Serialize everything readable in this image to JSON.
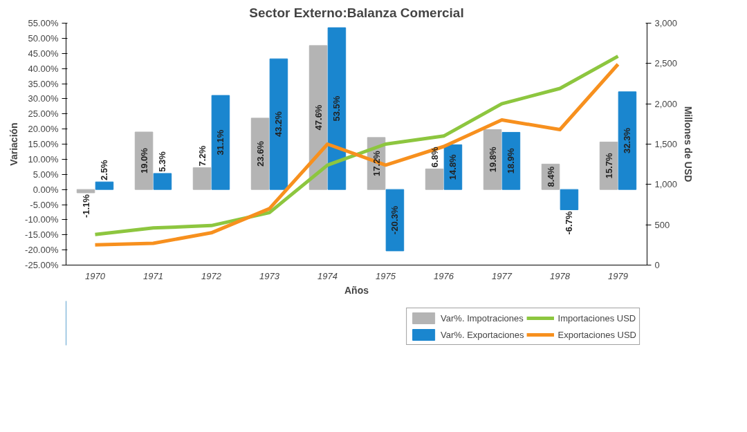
{
  "chart_data": {
    "type": "bar",
    "title": "Sector Externo:Balanza Comercial",
    "xlabel": "Años",
    "ylabel": "Variación",
    "y2label": "Millones de USD",
    "categories": [
      "1970",
      "1971",
      "1972",
      "1973",
      "1974",
      "1975",
      "1976",
      "1977",
      "1978",
      "1979"
    ],
    "series": [
      {
        "name": "Var%. Impotraciones",
        "color": "#b4b4b4",
        "values": [
          -1.1,
          19.0,
          7.2,
          23.6,
          47.6,
          17.2,
          6.8,
          19.8,
          8.4,
          15.7
        ],
        "value_labels": [
          "-1.1%",
          "19.0%",
          "7.2%",
          "23.6%",
          "47.6%",
          "17.2%",
          "6.8%",
          "19.8%",
          "8.4%",
          "15.7%"
        ]
      },
      {
        "name": "Var%. Exportaciones",
        "color": "#1a86cf",
        "values": [
          2.5,
          5.3,
          31.1,
          43.2,
          53.5,
          -20.3,
          14.8,
          18.9,
          -6.7,
          32.3
        ],
        "value_labels": [
          "2.5%",
          "5.3%",
          "31.1%",
          "43.2%",
          "53.5%",
          "-20.3%",
          "14.8%",
          "18.9%",
          "-6.7%",
          "32.3%"
        ]
      },
      {
        "name": "Importaciones USD",
        "type": "line",
        "axis": "y2",
        "color": "#8dc63f",
        "values": [
          380,
          460,
          490,
          650,
          1240,
          1500,
          1600,
          2000,
          2190,
          2590
        ]
      },
      {
        "name": "Exportaciones USD",
        "type": "line",
        "axis": "y2",
        "color": "#f7901e",
        "values": [
          250,
          270,
          400,
          700,
          1500,
          1240,
          1470,
          1800,
          1680,
          2490
        ]
      }
    ],
    "ylim": [
      -25,
      55
    ],
    "yticks": [
      {
        "value": -25,
        "label": "-25.00%"
      },
      {
        "value": -20,
        "label": "-20.00%"
      },
      {
        "value": -15,
        "label": "-15.00%"
      },
      {
        "value": -10,
        "label": "-10.00%"
      },
      {
        "value": -5,
        "label": "-5.00%"
      },
      {
        "value": 0,
        "label": "0.00%"
      },
      {
        "value": 5,
        "label": "5.00%"
      },
      {
        "value": 10,
        "label": "10.00%"
      },
      {
        "value": 15,
        "label": "15.00%"
      },
      {
        "value": 20,
        "label": "20.00%"
      },
      {
        "value": 25,
        "label": "25.00%"
      },
      {
        "value": 30,
        "label": "30.00%"
      },
      {
        "value": 35,
        "label": "35.00%"
      },
      {
        "value": 40,
        "label": "40.00%"
      },
      {
        "value": 45,
        "label": "45.00%"
      },
      {
        "value": 50,
        "label": "50.00%"
      },
      {
        "value": 55,
        "label": "55.00%"
      }
    ],
    "y2lim": [
      0,
      3000
    ],
    "y2ticks": [
      0,
      500,
      {
        "value": 1000,
        "label": "1,000"
      },
      {
        "value": 1500,
        "label": "1,500"
      },
      {
        "value": 2000,
        "label": "2,000"
      },
      {
        "value": 2500,
        "label": "2,500"
      },
      {
        "value": 3000,
        "label": "3,000"
      }
    ],
    "grid": false,
    "legend": "bottom right"
  }
}
